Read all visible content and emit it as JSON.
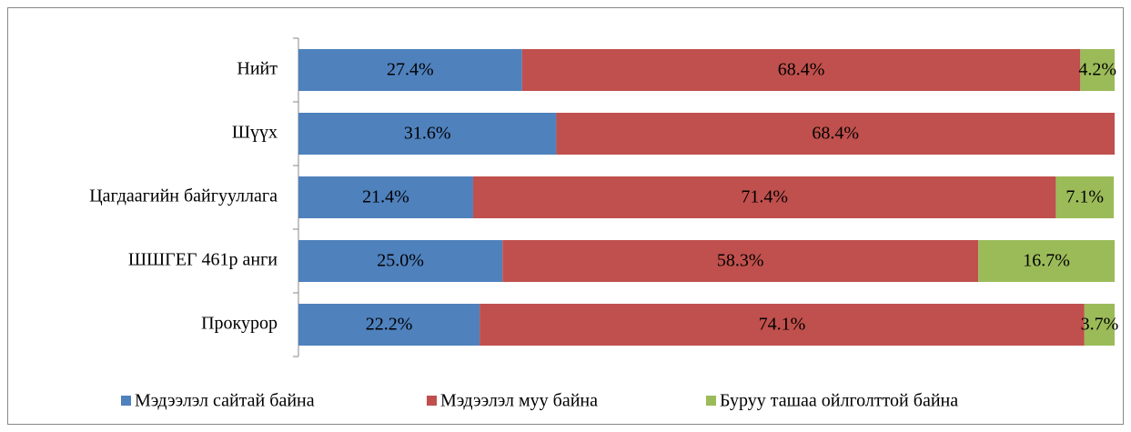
{
  "chart_data": {
    "type": "stacked-barh",
    "categories": [
      "Нийт",
      "Шүүх",
      "Цагдаагийн байгууллага",
      "ШШГЕГ 461р анги",
      "Прокурор"
    ],
    "xlim": [
      0,
      100
    ],
    "series": [
      {
        "name": "Мэдээлэл сайтай байна",
        "color": "#4f81bd",
        "values": [
          27.4,
          31.6,
          21.4,
          25.0,
          22.2
        ],
        "value_labels": [
          "27.4%",
          "31.6%",
          "21.4%",
          "25.0%",
          "22.2%"
        ]
      },
      {
        "name": "Мэдээлэл муу байна",
        "color": "#c0504d",
        "values": [
          68.4,
          68.4,
          71.4,
          58.3,
          74.1
        ],
        "value_labels": [
          "68.4%",
          "68.4%",
          "71.4%",
          "58.3%",
          "74.1%"
        ]
      },
      {
        "name": "Буруу ташаа ойлголттой байна",
        "color": "#9bbb59",
        "values": [
          4.2,
          null,
          7.1,
          16.7,
          3.7
        ],
        "value_labels": [
          "4.2%",
          null,
          "7.1%",
          "16.7%",
          "3.7%"
        ]
      }
    ],
    "legend": "bottom"
  }
}
